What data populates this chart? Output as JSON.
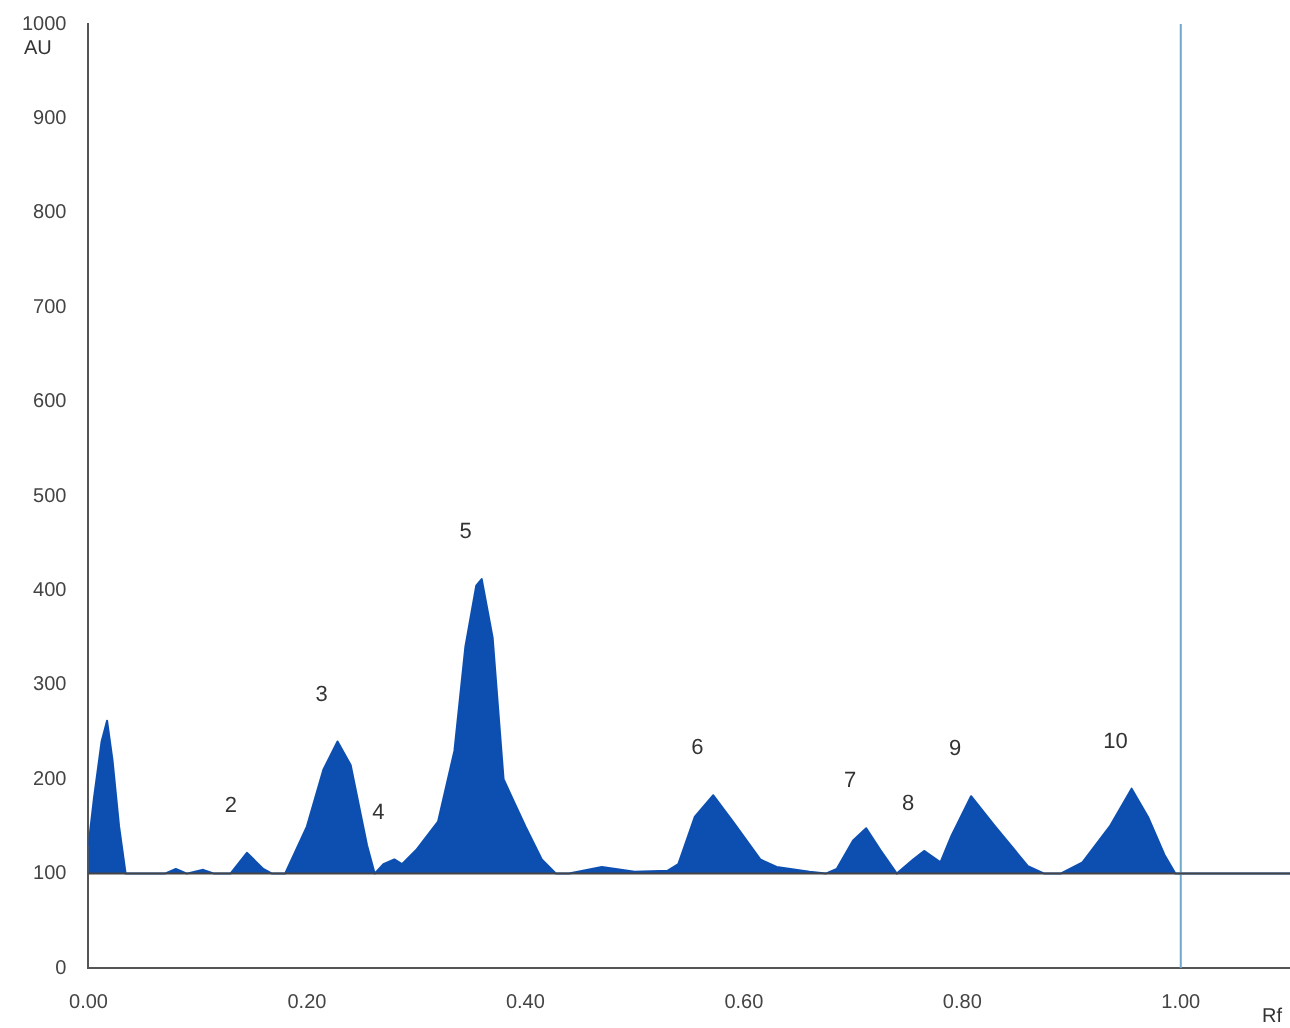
{
  "chart_data": {
    "type": "area",
    "xlabel": "Rf",
    "ylabel": "AU",
    "x": [
      0,
      0.005,
      0.012,
      0.017,
      0.022,
      0.028,
      0.034,
      0.07,
      0.08,
      0.09,
      0.105,
      0.115,
      0.13,
      0.145,
      0.16,
      0.168,
      0.18,
      0.2,
      0.215,
      0.228,
      0.24,
      0.255,
      0.262,
      0.27,
      0.28,
      0.287,
      0.3,
      0.32,
      0.335,
      0.345,
      0.355,
      0.36,
      0.37,
      0.38,
      0.39,
      0.4,
      0.415,
      0.428,
      0.44,
      0.47,
      0.5,
      0.53,
      0.54,
      0.555,
      0.572,
      0.59,
      0.615,
      0.63,
      0.66,
      0.675,
      0.685,
      0.7,
      0.712,
      0.725,
      0.74,
      0.755,
      0.765,
      0.78,
      0.79,
      0.808,
      0.83,
      0.86,
      0.875,
      0.89,
      0.91,
      0.935,
      0.955,
      0.97,
      0.985,
      0.995,
      1.1
    ],
    "series": [
      {
        "color": "#0d4fb0",
        "values": [
          130,
          180,
          240,
          262,
          220,
          150,
          100,
          100,
          105,
          100,
          104,
          100,
          100,
          122,
          105,
          100,
          100,
          150,
          210,
          240,
          215,
          130,
          100,
          110,
          115,
          110,
          125,
          155,
          230,
          340,
          405,
          412,
          350,
          200,
          175,
          150,
          115,
          100,
          100,
          107,
          102,
          103,
          110,
          160,
          183,
          155,
          115,
          107,
          102,
          100,
          105,
          135,
          148,
          125,
          100,
          115,
          124,
          112,
          140,
          182,
          150,
          108,
          100,
          100,
          112,
          150,
          190,
          160,
          120,
          100,
          100
        ]
      }
    ],
    "xlim": [
      0,
      1.1
    ],
    "xticks": [
      {
        "value": 0,
        "label": "0.00"
      },
      {
        "value": 0.2,
        "label": "0.20"
      },
      {
        "value": 0.4,
        "label": "0.40"
      },
      {
        "value": 0.6,
        "label": "0.60"
      },
      {
        "value": 0.8,
        "label": "0.80"
      },
      {
        "value": 1,
        "label": "1.00"
      }
    ],
    "ylim": [
      0,
      1000
    ],
    "yticks": [
      0,
      100,
      200,
      300,
      400,
      500,
      600,
      700,
      800,
      900,
      1000
    ],
    "grid": false,
    "legend": false,
    "marker": "none",
    "ref_lines": [
      {
        "axis": "x",
        "value": 1,
        "color": "#6fa8c8"
      },
      {
        "axis": "y",
        "value": 100,
        "color": "#444444"
      }
    ],
    "annotations": [
      {
        "text": "2",
        "x": 0.145,
        "y": 122
      },
      {
        "text": "3",
        "x": 0.228,
        "y": 240
      },
      {
        "text": "4",
        "x": 0.28,
        "y": 115
      },
      {
        "text": "5",
        "x": 0.36,
        "y": 412
      },
      {
        "text": "6",
        "x": 0.572,
        "y": 183
      },
      {
        "text": "7",
        "x": 0.712,
        "y": 148
      },
      {
        "text": "8",
        "x": 0.765,
        "y": 124
      },
      {
        "text": "9",
        "x": 0.808,
        "y": 182
      },
      {
        "text": "10",
        "x": 0.955,
        "y": 190
      }
    ]
  }
}
